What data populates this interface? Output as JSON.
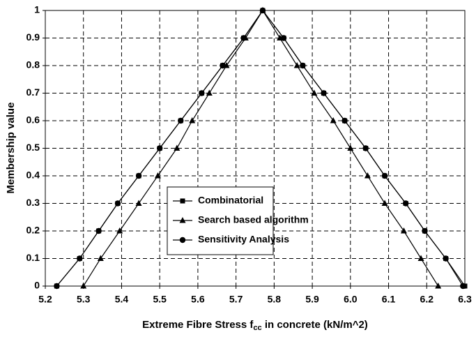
{
  "chart_data": {
    "type": "line",
    "xlabel": [
      "Extreme Fibre Stress f",
      "cc",
      " in concrete (kN/m^2)"
    ],
    "ylabel": "Membership value",
    "xlim": [
      5.2,
      6.3
    ],
    "xticks": [
      5.2,
      5.3,
      5.4,
      5.5,
      5.6,
      5.7,
      5.8,
      5.9,
      {
        "value": 6,
        "label": "6.0"
      },
      6.1,
      6.2,
      6.3
    ],
    "ylim": [
      0,
      1
    ],
    "yticks": [
      0,
      0.1,
      0.2,
      0.3,
      0.4,
      0.5,
      0.6,
      0.7,
      0.8,
      0.9,
      1
    ],
    "grid": true,
    "legend": "lower-center",
    "series": [
      {
        "name": "Combinatorial",
        "color": "#000000",
        "marker": "square",
        "x": [
          5.23,
          5.29,
          5.34,
          5.39,
          5.445,
          5.5,
          5.555,
          5.61,
          5.665,
          5.72,
          5.77,
          5.825,
          5.875,
          5.93,
          5.985,
          6.04,
          6.09,
          6.145,
          6.195,
          6.25,
          6.3
        ],
        "values": [
          0,
          0.1,
          0.2,
          0.3,
          0.4,
          0.5,
          0.6,
          0.7,
          0.8,
          0.9,
          1,
          0.9,
          0.8,
          0.7,
          0.6,
          0.5,
          0.4,
          0.3,
          0.2,
          0.1,
          0
        ]
      },
      {
        "name": "Search based algorithm",
        "color": "#000000",
        "marker": "triangle",
        "x": [
          5.3,
          5.345,
          5.395,
          5.445,
          5.495,
          5.545,
          5.585,
          5.63,
          5.675,
          5.725,
          5.77,
          5.815,
          5.86,
          5.905,
          5.955,
          6.0,
          6.045,
          6.09,
          6.14,
          6.185,
          6.23
        ],
        "values": [
          0,
          0.1,
          0.2,
          0.3,
          0.4,
          0.5,
          0.6,
          0.7,
          0.8,
          0.9,
          1,
          0.9,
          0.8,
          0.7,
          0.6,
          0.5,
          0.4,
          0.3,
          0.2,
          0.1,
          0
        ]
      },
      {
        "name": "Sensitivity Analysis",
        "color": "#000000",
        "marker": "circle",
        "x": [
          5.23,
          5.29,
          5.34,
          5.39,
          5.445,
          5.5,
          5.555,
          5.61,
          5.665,
          5.72,
          5.77,
          5.825,
          5.875,
          5.93,
          5.985,
          6.04,
          6.09,
          6.145,
          6.195,
          6.25,
          6.295
        ],
        "values": [
          0,
          0.1,
          0.2,
          0.3,
          0.4,
          0.5,
          0.6,
          0.7,
          0.8,
          0.9,
          1,
          0.9,
          0.8,
          0.7,
          0.6,
          0.5,
          0.4,
          0.3,
          0.2,
          0.1,
          0
        ]
      }
    ]
  }
}
